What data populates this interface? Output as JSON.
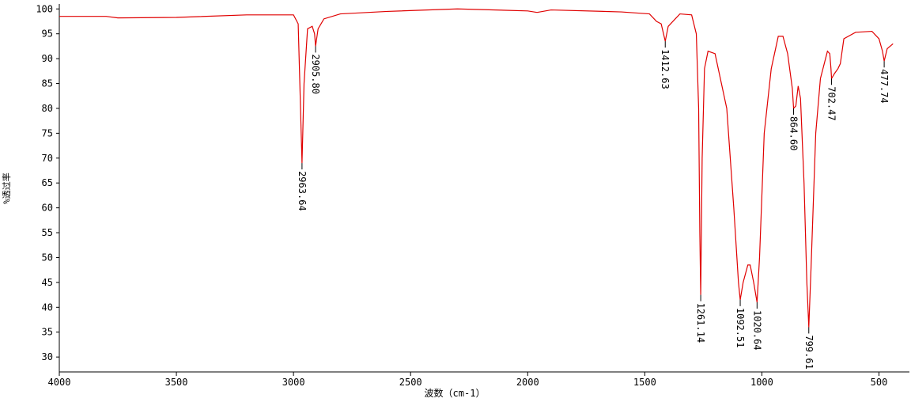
{
  "chart_data": {
    "type": "line",
    "xlabel": "波数（cm-1）",
    "ylabel": "%透过率",
    "xlim": [
      4000,
      370
    ],
    "ylim": [
      27,
      101
    ],
    "xticks": [
      4000,
      3500,
      3000,
      2500,
      2000,
      1500,
      1000,
      500
    ],
    "yticks": [
      30,
      35,
      40,
      45,
      50,
      55,
      60,
      65,
      70,
      75,
      80,
      85,
      90,
      95,
      100
    ],
    "grid": false,
    "series": [
      {
        "color": "#e00000",
        "x": [
          4000,
          3800,
          3750,
          3500,
          3200,
          3000,
          2980,
          2970,
          2963.64,
          2955,
          2940,
          2920,
          2910,
          2905.8,
          2895,
          2870,
          2800,
          2600,
          2300,
          2000,
          1960,
          1900,
          1600,
          1480,
          1450,
          1430,
          1420,
          1412.63,
          1400,
          1350,
          1300,
          1280,
          1270,
          1265,
          1261.14,
          1255,
          1245,
          1230,
          1200,
          1150,
          1120,
          1100,
          1092.51,
          1080,
          1060,
          1050,
          1035,
          1020.64,
          1010,
          990,
          960,
          930,
          910,
          890,
          870,
          864.6,
          855,
          845,
          835,
          820,
          808,
          799.61,
          790,
          770,
          750,
          720,
          710,
          705,
          702.47,
          690,
          675,
          665,
          650,
          600,
          530,
          500,
          485,
          477.74,
          465,
          440
        ],
        "values": [
          98.5,
          98.5,
          98.2,
          98.3,
          98.8,
          98.8,
          97,
          80,
          69,
          85,
          96,
          96.5,
          95,
          92.5,
          96,
          98,
          99,
          99.5,
          100,
          99.6,
          99.3,
          99.8,
          99.4,
          99,
          97.5,
          97,
          95,
          93.5,
          96.5,
          99,
          98.8,
          95,
          80,
          55,
          42.5,
          70,
          88,
          91.5,
          91,
          80,
          60,
          45,
          41.5,
          45,
          48.5,
          48.5,
          45,
          41,
          50,
          75,
          88,
          94.5,
          94.5,
          91,
          84,
          80,
          80.5,
          84.5,
          82,
          65,
          45,
          36,
          48,
          75,
          86,
          91.5,
          91,
          88,
          86,
          87,
          88,
          89,
          94,
          95.3,
          95.5,
          94,
          91.5,
          89.5,
          92,
          93
        ]
      }
    ],
    "annotations": [
      {
        "x": 2963.64,
        "y": 69,
        "label": "2963.64"
      },
      {
        "x": 2905.8,
        "y": 92.5,
        "label": "2905.80"
      },
      {
        "x": 1412.63,
        "y": 93.5,
        "label": "1412.63"
      },
      {
        "x": 1261.14,
        "y": 42.5,
        "label": "1261.14"
      },
      {
        "x": 1092.51,
        "y": 41.5,
        "label": "1092.51"
      },
      {
        "x": 1020.64,
        "y": 41,
        "label": "1020.64"
      },
      {
        "x": 864.6,
        "y": 80,
        "label": "864.60"
      },
      {
        "x": 799.61,
        "y": 36,
        "label": "799.61"
      },
      {
        "x": 702.47,
        "y": 86,
        "label": "702.47"
      },
      {
        "x": 477.74,
        "y": 89.5,
        "label": "477.74"
      }
    ]
  }
}
